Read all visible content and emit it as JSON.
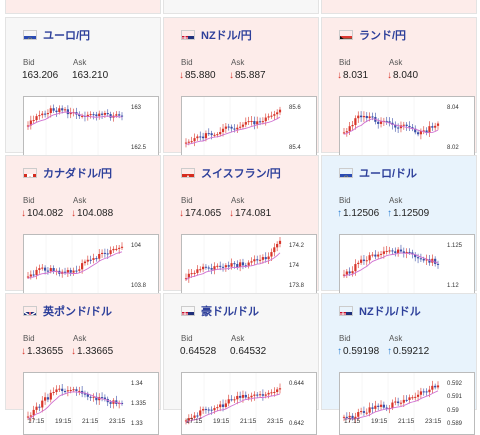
{
  "colors": {
    "up_candle": "#d8352a",
    "down_candle": "#3a4fa8",
    "ma_line": "#d070d0",
    "down_arrow": "#d8352a",
    "up_arrow": "#2a7fd4"
  },
  "bid_label": "Bid",
  "ask_label": "Ask",
  "x_ticks": [
    "17:15",
    "19:15",
    "21:15",
    "23:15"
  ],
  "cards": [
    {
      "id": "eurjpy",
      "name": "ユーロ/円",
      "flag": "eu-flag-icon",
      "bid": "163.206",
      "ask": "163.210",
      "bid_arrow": "",
      "ask_arrow": "",
      "direction": "neutral",
      "y_ticks": [
        "163",
        "162.5"
      ]
    },
    {
      "id": "nzdjpy",
      "name": "NZドル/円",
      "flag": "nz-flag-icon",
      "bid": "85.880",
      "ask": "85.887",
      "bid_arrow": "↓",
      "ask_arrow": "↓",
      "direction": "down",
      "y_ticks": [
        "85.6",
        "85.4"
      ]
    },
    {
      "id": "zarjpy",
      "name": "ランド/円",
      "flag": "za-flag-icon",
      "bid": "8.031",
      "ask": "8.040",
      "bid_arrow": "↓",
      "ask_arrow": "↓",
      "direction": "down",
      "y_ticks": [
        "8.04",
        "8.02"
      ]
    },
    {
      "id": "cadjpy",
      "name": "カナダドル/円",
      "flag": "ca-flag-icon",
      "bid": "104.082",
      "ask": "104.088",
      "bid_arrow": "↓",
      "ask_arrow": "↓",
      "direction": "down",
      "y_ticks": [
        "104",
        "103.8"
      ]
    },
    {
      "id": "chfjpy",
      "name": "スイスフラン/円",
      "flag": "ch-flag-icon",
      "bid": "174.065",
      "ask": "174.081",
      "bid_arrow": "↓",
      "ask_arrow": "↓",
      "direction": "down",
      "y_ticks": [
        "174.2",
        "174",
        "173.8"
      ]
    },
    {
      "id": "eurusd",
      "name": "ユーロ/ドル",
      "flag": "eu-flag-icon",
      "bid": "1.12506",
      "ask": "1.12509",
      "bid_arrow": "↑",
      "ask_arrow": "↑",
      "direction": "up",
      "y_ticks": [
        "1.125",
        "1.12"
      ]
    },
    {
      "id": "gbpusd",
      "name": "英ポンド/ドル",
      "flag": "uk-flag-icon",
      "bid": "1.33655",
      "ask": "1.33665",
      "bid_arrow": "↓",
      "ask_arrow": "↓",
      "direction": "down",
      "y_ticks": [
        "1.34",
        "1.335",
        "1.33"
      ]
    },
    {
      "id": "audusd",
      "name": "豪ドル/ドル",
      "flag": "au-flag-icon",
      "bid": "0.64528",
      "ask": "0.64532",
      "bid_arrow": "",
      "ask_arrow": "",
      "direction": "neutral",
      "y_ticks": [
        "0.644",
        "0.642"
      ]
    },
    {
      "id": "nzdusd",
      "name": "NZドル/ドル",
      "flag": "nz-flag-icon",
      "bid": "0.59198",
      "ask": "0.59212",
      "bid_arrow": "↑",
      "ask_arrow": "↑",
      "direction": "up",
      "y_ticks": [
        "0.592",
        "0.591",
        "0.59",
        "0.589"
      ]
    }
  ]
}
